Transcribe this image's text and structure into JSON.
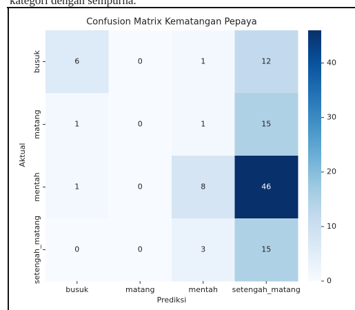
{
  "caption_above": "kategori dengan sempurna.",
  "chart_data": {
    "type": "heatmap",
    "title": "Confusion Matrix Kematangan Pepaya",
    "xlabel": "Prediksi",
    "ylabel": "Aktual",
    "x_categories": [
      "busuk",
      "matang",
      "mentah",
      "setengah_matang"
    ],
    "y_categories": [
      "busuk",
      "matang",
      "mentah",
      "setengah_matang"
    ],
    "values": [
      [
        6,
        0,
        1,
        12
      ],
      [
        1,
        0,
        1,
        15
      ],
      [
        1,
        0,
        8,
        46
      ],
      [
        0,
        0,
        3,
        15
      ]
    ],
    "colormap": "Blues",
    "zlim": [
      0,
      46
    ],
    "zticks": [
      0,
      10,
      20,
      30,
      40
    ]
  }
}
